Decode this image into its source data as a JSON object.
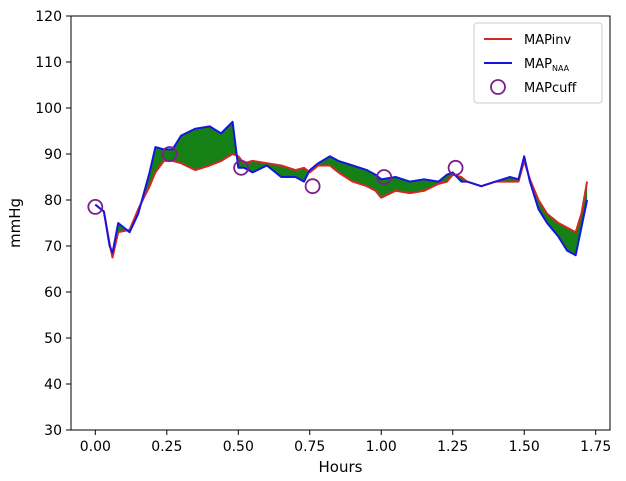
{
  "chart_data": {
    "type": "line",
    "title": "",
    "xlabel": "Hours",
    "ylabel": "mmHg",
    "xlim": [
      -0.085,
      1.8
    ],
    "ylim": [
      30,
      120
    ],
    "xticks": [
      "0.00",
      "0.25",
      "0.50",
      "0.75",
      "1.00",
      "1.25",
      "1.50",
      "1.75"
    ],
    "yticks": [
      "30",
      "40",
      "50",
      "60",
      "70",
      "80",
      "90",
      "100",
      "110",
      "120"
    ],
    "grid": false,
    "legend_position": "top-right",
    "colors": {
      "inv": "#d62728",
      "naa": "#1515e0",
      "cuff": "#7b1f8c",
      "fill": "#158015"
    },
    "legend": [
      {
        "key": "inv",
        "label": "MAPinv"
      },
      {
        "key": "naa",
        "label": "MAP",
        "subscript": "NAA"
      },
      {
        "key": "cuff",
        "label": "MAPcuff"
      }
    ],
    "series": [
      {
        "name": "MAPinv",
        "x": [
          0.0,
          0.03,
          0.05,
          0.06,
          0.08,
          0.12,
          0.15,
          0.19,
          0.21,
          0.24,
          0.27,
          0.3,
          0.35,
          0.4,
          0.44,
          0.48,
          0.5,
          0.52,
          0.55,
          0.6,
          0.65,
          0.7,
          0.73,
          0.75,
          0.78,
          0.82,
          0.85,
          0.9,
          0.95,
          0.98,
          1.0,
          1.05,
          1.1,
          1.15,
          1.2,
          1.23,
          1.25,
          1.28,
          1.3,
          1.35,
          1.4,
          1.45,
          1.48,
          1.5,
          1.52,
          1.55,
          1.58,
          1.62,
          1.65,
          1.68,
          1.7,
          1.72
        ],
        "values": [
          79,
          77.5,
          70.5,
          67.5,
          73,
          73.5,
          78,
          83,
          86,
          88.5,
          88.5,
          88,
          86.5,
          87.5,
          88.5,
          90,
          89.5,
          88,
          88.5,
          88,
          87.5,
          86.5,
          87,
          86,
          87.5,
          87.5,
          86,
          84,
          83,
          82,
          80.5,
          82,
          81.5,
          82,
          83.5,
          84,
          85.5,
          85,
          84,
          83,
          84,
          84,
          84,
          88.5,
          84.5,
          80,
          77,
          75,
          74,
          73,
          77,
          84
        ]
      },
      {
        "name": "MAP_NAA",
        "x": [
          0.0,
          0.03,
          0.05,
          0.06,
          0.08,
          0.12,
          0.15,
          0.19,
          0.21,
          0.24,
          0.27,
          0.3,
          0.35,
          0.4,
          0.44,
          0.48,
          0.5,
          0.52,
          0.55,
          0.6,
          0.65,
          0.7,
          0.73,
          0.75,
          0.78,
          0.82,
          0.85,
          0.9,
          0.95,
          0.98,
          1.0,
          1.05,
          1.1,
          1.15,
          1.2,
          1.23,
          1.25,
          1.28,
          1.3,
          1.35,
          1.4,
          1.45,
          1.48,
          1.5,
          1.52,
          1.55,
          1.58,
          1.62,
          1.65,
          1.68,
          1.7,
          1.72
        ],
        "values": [
          79,
          77.5,
          70,
          68.5,
          75,
          73,
          77,
          86,
          91.5,
          91,
          91,
          94,
          95.5,
          96,
          94.5,
          97,
          87,
          87,
          86,
          87.5,
          85,
          85,
          84,
          86.5,
          88,
          89.5,
          88.5,
          87.5,
          86.5,
          85.5,
          84.5,
          85,
          84,
          84.5,
          84,
          85.5,
          86,
          84,
          84,
          83,
          84,
          85,
          84.5,
          89.5,
          84,
          78,
          75,
          72,
          69,
          68,
          74,
          80
        ]
      },
      {
        "name": "MAPcuff",
        "type": "scatter",
        "x": [
          0.0,
          0.26,
          0.51,
          0.76,
          1.01,
          1.26
        ],
        "values": [
          78.5,
          90,
          87,
          83,
          85,
          87
        ]
      }
    ]
  }
}
